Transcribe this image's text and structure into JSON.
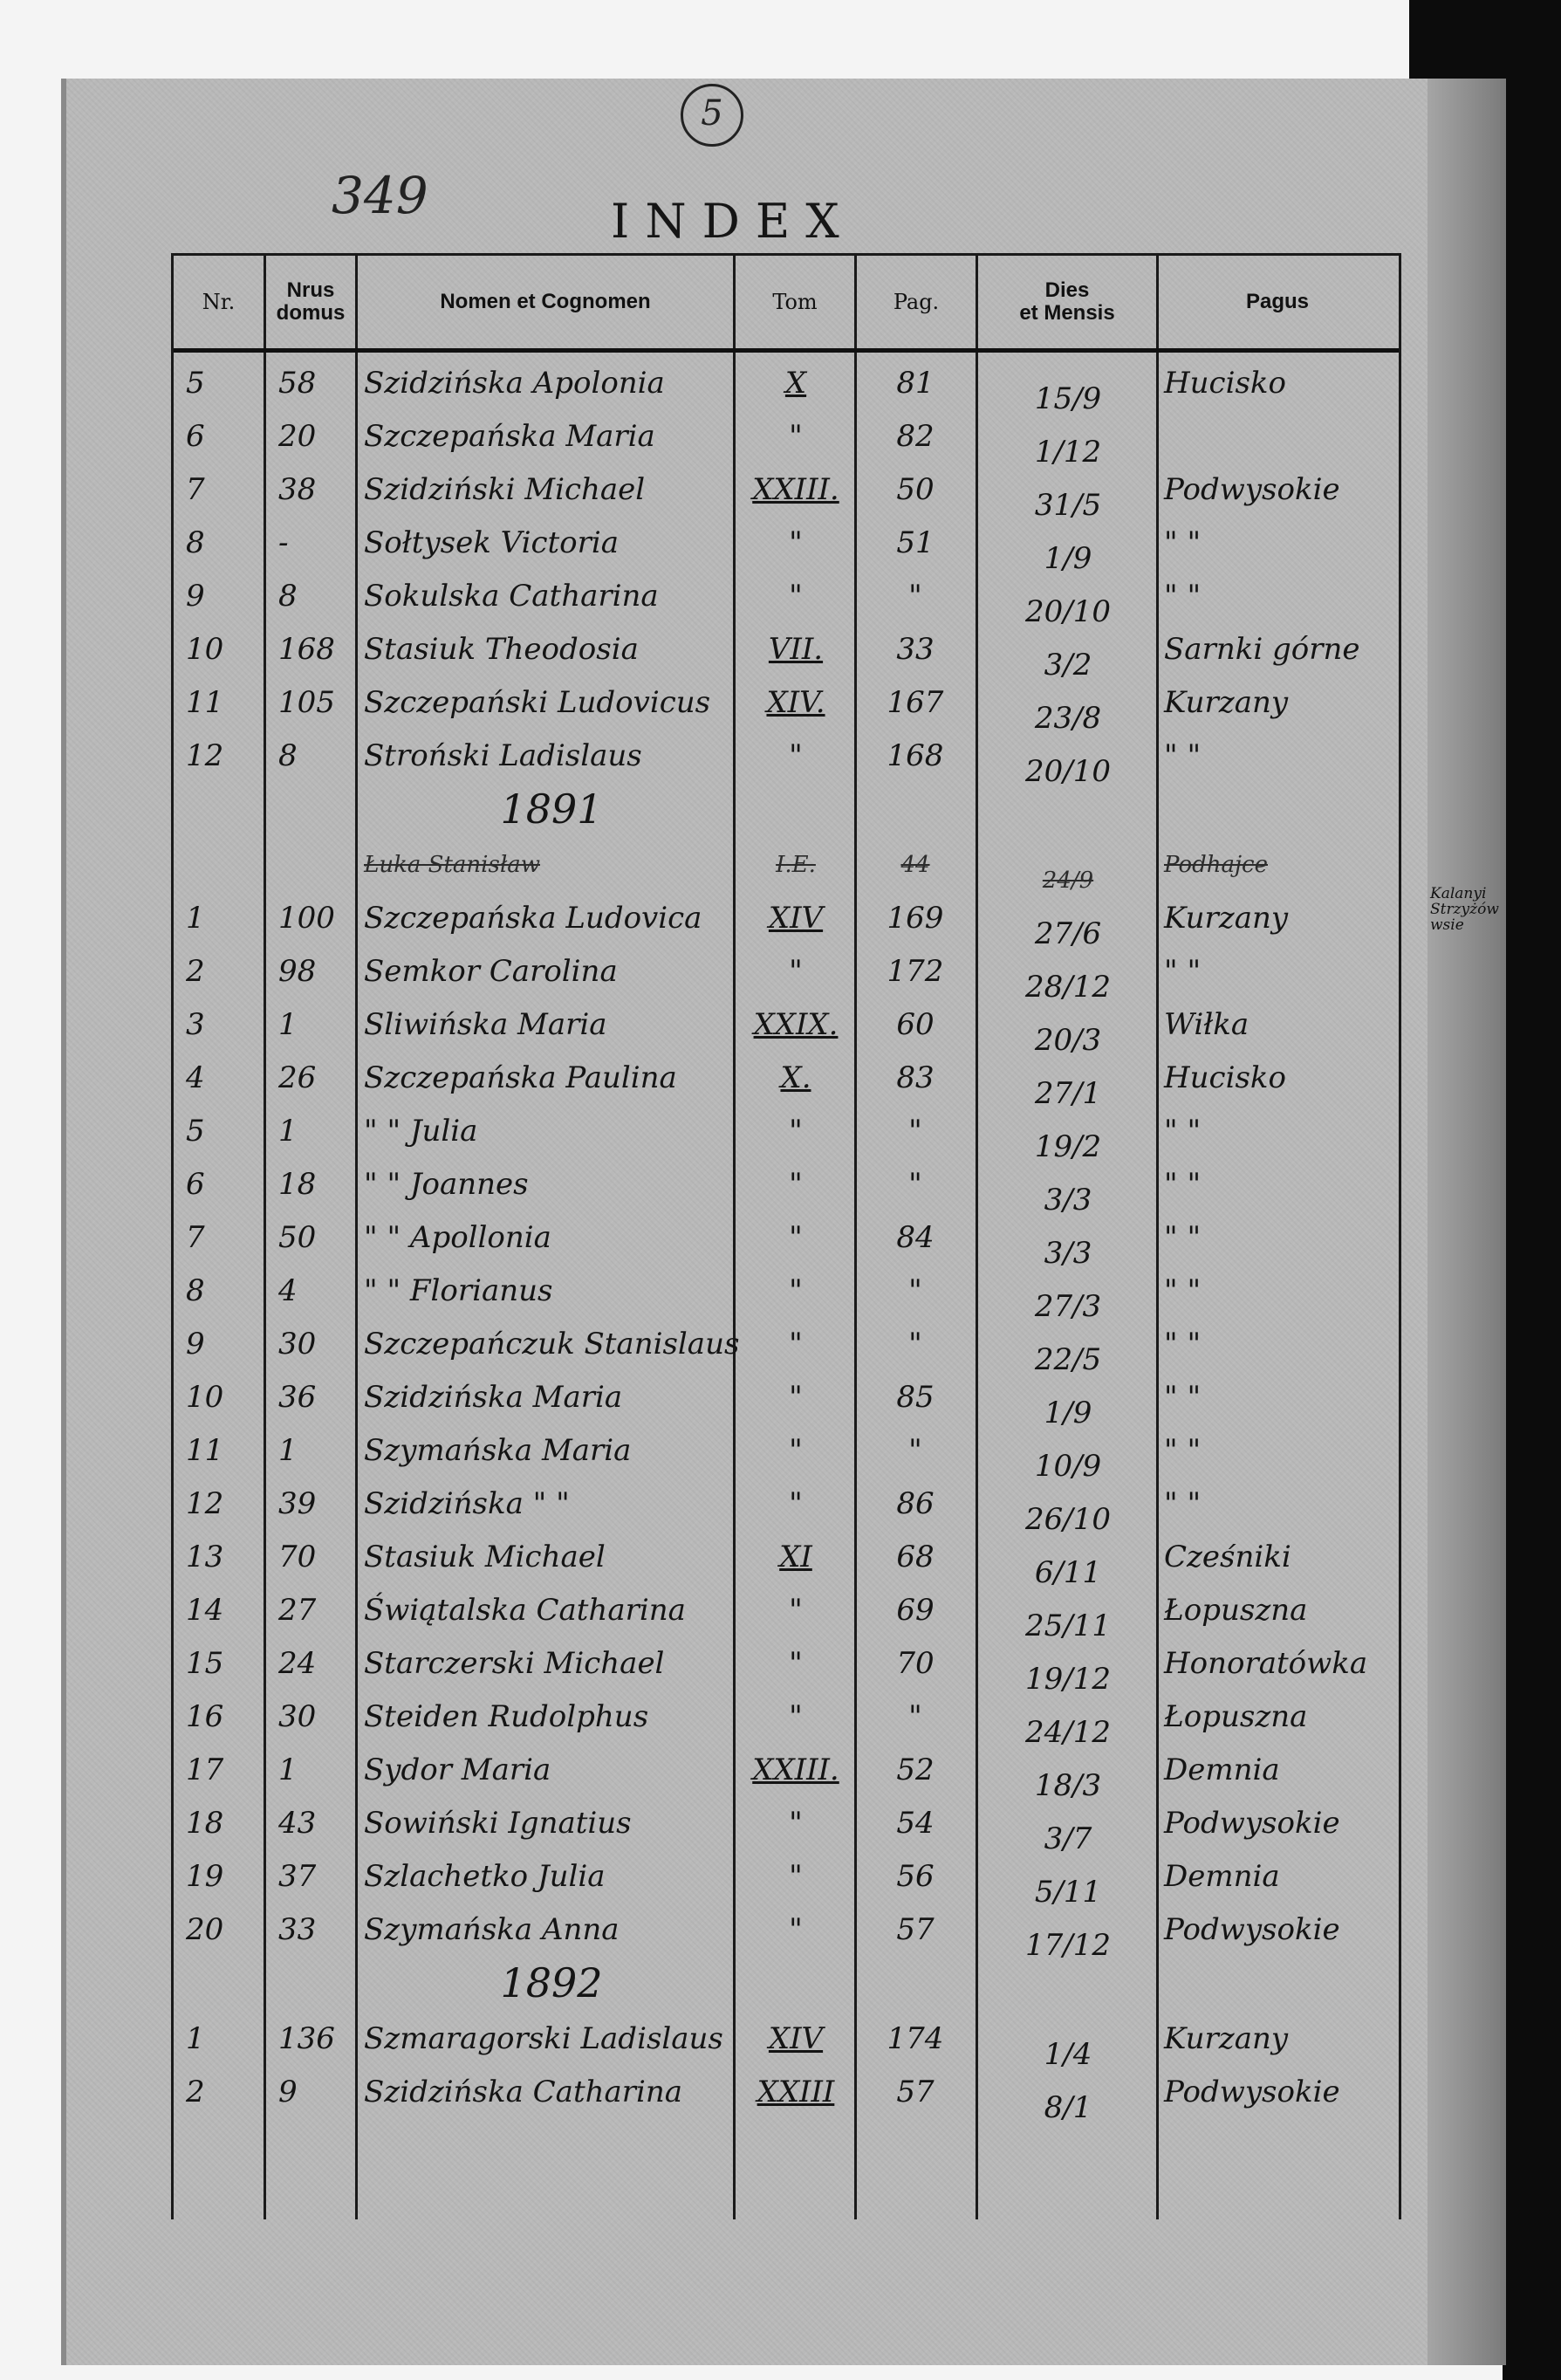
{
  "folio_number": "349",
  "stamp_number": "5",
  "title": "INDEX",
  "columns": {
    "nr": "Nr.",
    "domus_1": "Nrus",
    "domus_2": "domus",
    "nomen": "Nomen et Cognomen",
    "tom": "Tom",
    "pag": "Pag.",
    "dies_1": "Dies",
    "dies_2": "et Mensis",
    "pagus": "Pagus"
  },
  "entries": [
    {
      "nr": "5",
      "domus": "58",
      "nomen": "Szidzińska Apolonia",
      "tom": "X",
      "pag": "81",
      "dies": "15/9",
      "pagus": "Hucisko"
    },
    {
      "nr": "6",
      "domus": "20",
      "nomen": "Szczepańska Maria",
      "tom": "\"",
      "pag": "82",
      "dies": "1/12",
      "pagus": ""
    },
    {
      "nr": "7",
      "domus": "38",
      "nomen": "Szidziński Michael",
      "tom": "XXIII.",
      "pag": "50",
      "dies": "31/5",
      "pagus": "Podwysokie"
    },
    {
      "nr": "8",
      "domus": "-",
      "nomen": "Sołtysek Victoria",
      "tom": "\"",
      "pag": "51",
      "dies": "1/9",
      "pagus": "\"   \""
    },
    {
      "nr": "9",
      "domus": "8",
      "nomen": "Sokulska Catharina",
      "tom": "\"",
      "pag": "\"",
      "dies": "20/10",
      "pagus": "\"   \""
    },
    {
      "nr": "10",
      "domus": "168",
      "nomen": "Stasiuk Theodosia",
      "tom": "VII.",
      "pag": "33",
      "dies": "3/2",
      "pagus": "Sarnki górne"
    },
    {
      "nr": "11",
      "domus": "105",
      "nomen": "Szczepański Ludovicus",
      "tom": "XIV.",
      "pag": "167",
      "dies": "23/8",
      "pagus": "Kurzany"
    },
    {
      "nr": "12",
      "domus": "8",
      "nomen": "Stroński Ladislaus",
      "tom": "\"",
      "pag": "168",
      "dies": "20/10",
      "pagus": "\"   \""
    },
    {
      "year": "1891"
    },
    {
      "struck": true,
      "nomen": "Łuka Stanisław",
      "tom": "I.E.",
      "pag": "44",
      "dies": "24/9",
      "pagus": "Podhajce"
    },
    {
      "nr": "1",
      "domus": "100",
      "nomen": "Szczepańska Ludovica",
      "tom": "XIV",
      "pag": "169",
      "dies": "27/6",
      "pagus": "Kurzany",
      "note": "Kalanyi Strzyżów wsie"
    },
    {
      "nr": "2",
      "domus": "98",
      "nomen": "Semkor Carolina",
      "tom": "\"",
      "pag": "172",
      "dies": "28/12",
      "pagus": "\"   \""
    },
    {
      "nr": "3",
      "domus": "1",
      "nomen": "Sliwińska Maria",
      "tom": "XXIX.",
      "pag": "60",
      "dies": "20/3",
      "pagus": "Wiłka"
    },
    {
      "nr": "4",
      "domus": "26",
      "nomen": "Szczepańska Paulina",
      "tom": "X.",
      "pag": "83",
      "dies": "27/1",
      "pagus": "Hucisko"
    },
    {
      "nr": "5",
      "domus": "1",
      "nomen": "\"       \" Julia",
      "tom": "\"",
      "pag": "\"",
      "dies": "19/2",
      "pagus": "\"   \""
    },
    {
      "nr": "6",
      "domus": "18",
      "nomen": "\"       \" Joannes",
      "tom": "\"",
      "pag": "\"",
      "dies": "3/3",
      "pagus": "\"   \""
    },
    {
      "nr": "7",
      "domus": "50",
      "nomen": "\"       \" Apollonia",
      "tom": "\"",
      "pag": "84",
      "dies": "3/3",
      "pagus": "\"   \""
    },
    {
      "nr": "8",
      "domus": "4",
      "nomen": "\"       \" Florianus",
      "tom": "\"",
      "pag": "\"",
      "dies": "27/3",
      "pagus": "\"   \""
    },
    {
      "nr": "9",
      "domus": "30",
      "nomen": "Szczepańczuk Stanislaus",
      "tom": "\"",
      "pag": "\"",
      "dies": "22/5",
      "pagus": "\"   \""
    },
    {
      "nr": "10",
      "domus": "36",
      "nomen": "Szidzińska Maria",
      "tom": "\"",
      "pag": "85",
      "dies": "1/9",
      "pagus": "\"   \""
    },
    {
      "nr": "11",
      "domus": "1",
      "nomen": "Szymańska Maria",
      "tom": "\"",
      "pag": "\"",
      "dies": "10/9",
      "pagus": "\"   \""
    },
    {
      "nr": "12",
      "domus": "39",
      "nomen": "Szidzińska  \"  \"",
      "tom": "\"",
      "pag": "86",
      "dies": "26/10",
      "pagus": "\"   \""
    },
    {
      "nr": "13",
      "domus": "70",
      "nomen": "Stasiuk Michael",
      "tom": "XI",
      "pag": "68",
      "dies": "6/11",
      "pagus": "Cześniki"
    },
    {
      "nr": "14",
      "domus": "27",
      "nomen": "Świątalska Catharina",
      "tom": "\"",
      "pag": "69",
      "dies": "25/11",
      "pagus": "Łopuszna"
    },
    {
      "nr": "15",
      "domus": "24",
      "nomen": "Starczerski Michael",
      "tom": "\"",
      "pag": "70",
      "dies": "19/12",
      "pagus": "Honoratówka"
    },
    {
      "nr": "16",
      "domus": "30",
      "nomen": "Steiden Rudolphus",
      "tom": "\"",
      "pag": "\"",
      "dies": "24/12",
      "pagus": "Łopuszna"
    },
    {
      "nr": "17",
      "domus": "1",
      "nomen": "Sydor Maria",
      "tom": "XXIII.",
      "pag": "52",
      "dies": "18/3",
      "pagus": "Demnia"
    },
    {
      "nr": "18",
      "domus": "43",
      "nomen": "Sowiński Ignatius",
      "tom": "\"",
      "pag": "54",
      "dies": "3/7",
      "pagus": "Podwysokie"
    },
    {
      "nr": "19",
      "domus": "37",
      "nomen": "Szlachetko Julia",
      "tom": "\"",
      "pag": "56",
      "dies": "5/11",
      "pagus": "Demnia"
    },
    {
      "nr": "20",
      "domus": "33",
      "nomen": "Szymańska Anna",
      "tom": "\"",
      "pag": "57",
      "dies": "17/12",
      "pagus": "Podwysokie"
    },
    {
      "year": "1892"
    },
    {
      "nr": "1",
      "domus": "136",
      "nomen": "Szmaragorski Ladislaus",
      "tom": "XIV",
      "pag": "174",
      "dies": "1/4",
      "pagus": "Kurzany"
    },
    {
      "nr": "2",
      "domus": "9",
      "nomen": "Szidzińska Catharina",
      "tom": "XXIII",
      "pag": "57",
      "dies": "8/1",
      "pagus": "Podwysokie"
    }
  ]
}
